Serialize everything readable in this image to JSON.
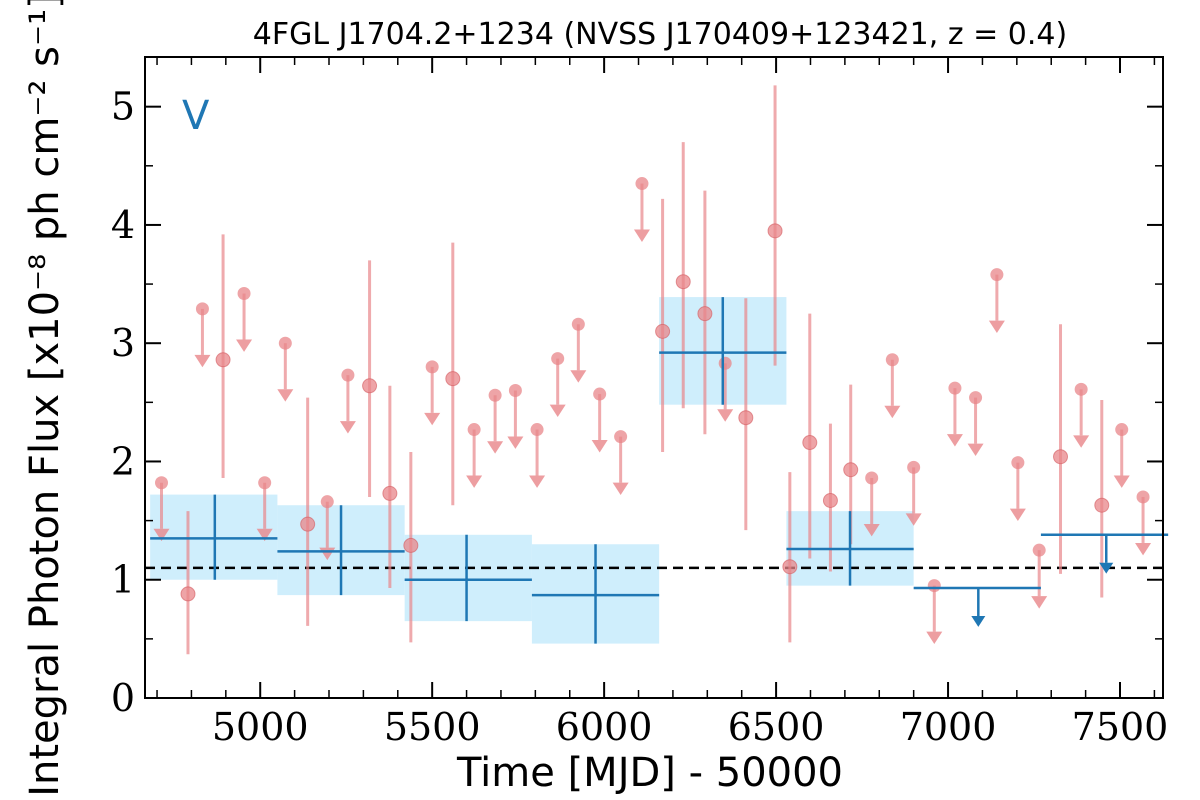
{
  "chart_data": {
    "type": "scatter",
    "title": "4FGL J1704.2+1234 (NVSS J170409+123421, z = 0.4)",
    "xlabel": "Time [MJD] - 50000",
    "ylabel": "Integral Photon Flux [x10⁻⁸ ph cm⁻² s⁻¹]",
    "xlim": [
      4665,
      7625
    ],
    "ylim": [
      0,
      5.42
    ],
    "xticks": [
      5000,
      5500,
      6000,
      6500,
      7000,
      7500
    ],
    "yticks": [
      0,
      1,
      2,
      3,
      4,
      5
    ],
    "annotation": "V",
    "mean_flux_level": 1.1,
    "colors": {
      "monthly": "#e8868a",
      "binned": "#1f77b4",
      "band": "#cfeefc",
      "mean_line": "#000000"
    },
    "monthly_detections": [
      {
        "x": 4790,
        "y": 0.88,
        "lo": 0.37,
        "hi": 1.58
      },
      {
        "x": 4892,
        "y": 2.86,
        "lo": 1.86,
        "hi": 3.92
      },
      {
        "x": 5138,
        "y": 1.47,
        "lo": 0.61,
        "hi": 2.54
      },
      {
        "x": 5318,
        "y": 2.64,
        "lo": 1.7,
        "hi": 3.7
      },
      {
        "x": 5377,
        "y": 1.73,
        "lo": 0.93,
        "hi": 2.64
      },
      {
        "x": 5438,
        "y": 1.29,
        "lo": 0.47,
        "hi": 2.08
      },
      {
        "x": 5560,
        "y": 2.7,
        "lo": 1.63,
        "hi": 3.85
      },
      {
        "x": 6170,
        "y": 3.1,
        "lo": 2.08,
        "hi": 4.22
      },
      {
        "x": 6230,
        "y": 3.52,
        "lo": 2.45,
        "hi": 4.7
      },
      {
        "x": 6293,
        "y": 3.25,
        "lo": 2.23,
        "hi": 4.29
      },
      {
        "x": 6412,
        "y": 2.37,
        "lo": 1.42,
        "hi": 3.38
      },
      {
        "x": 6497,
        "y": 3.95,
        "lo": 2.81,
        "hi": 5.18
      },
      {
        "x": 6540,
        "y": 1.11,
        "lo": 0.47,
        "hi": 1.91
      },
      {
        "x": 6598,
        "y": 2.16,
        "lo": 1.18,
        "hi": 3.25
      },
      {
        "x": 6658,
        "y": 1.67,
        "lo": 1.07,
        "hi": 2.32
      },
      {
        "x": 6717,
        "y": 1.93,
        "lo": 1.3,
        "hi": 2.65
      },
      {
        "x": 7327,
        "y": 2.04,
        "lo": 1.05,
        "hi": 3.16
      },
      {
        "x": 7447,
        "y": 1.63,
        "lo": 0.85,
        "hi": 2.52
      }
    ],
    "monthly_upper_limits": [
      {
        "x": 4713,
        "y": 1.82
      },
      {
        "x": 4832,
        "y": 3.29
      },
      {
        "x": 4953,
        "y": 3.42
      },
      {
        "x": 5013,
        "y": 1.82
      },
      {
        "x": 5073,
        "y": 3.0
      },
      {
        "x": 5195,
        "y": 1.66
      },
      {
        "x": 5255,
        "y": 2.73
      },
      {
        "x": 5500,
        "y": 2.8
      },
      {
        "x": 5622,
        "y": 2.27
      },
      {
        "x": 5683,
        "y": 2.56
      },
      {
        "x": 5742,
        "y": 2.6
      },
      {
        "x": 5805,
        "y": 2.27
      },
      {
        "x": 5865,
        "y": 2.87
      },
      {
        "x": 5925,
        "y": 3.16
      },
      {
        "x": 5987,
        "y": 2.57
      },
      {
        "x": 6048,
        "y": 2.21
      },
      {
        "x": 6110,
        "y": 4.35
      },
      {
        "x": 6352,
        "y": 2.83
      },
      {
        "x": 6778,
        "y": 1.86
      },
      {
        "x": 6838,
        "y": 2.86
      },
      {
        "x": 6900,
        "y": 1.95
      },
      {
        "x": 6960,
        "y": 0.95
      },
      {
        "x": 7020,
        "y": 2.62
      },
      {
        "x": 7080,
        "y": 2.54
      },
      {
        "x": 7142,
        "y": 3.58
      },
      {
        "x": 7203,
        "y": 1.99
      },
      {
        "x": 7265,
        "y": 1.25
      },
      {
        "x": 7387,
        "y": 2.61
      },
      {
        "x": 7505,
        "y": 2.27
      },
      {
        "x": 7567,
        "y": 1.7
      }
    ],
    "binned_detections": [
      {
        "x0": 4680,
        "x1": 5050,
        "x": 4868,
        "y": 1.35,
        "lo": 1.0,
        "hi": 1.72,
        "band_lo": 1.0,
        "band_hi": 1.72
      },
      {
        "x0": 5050,
        "x1": 5420,
        "x": 5235,
        "y": 1.24,
        "lo": 0.87,
        "hi": 1.63,
        "band_lo": 0.87,
        "band_hi": 1.63
      },
      {
        "x0": 5420,
        "x1": 5790,
        "x": 5600,
        "y": 1.0,
        "lo": 0.65,
        "hi": 1.38,
        "band_lo": 0.65,
        "band_hi": 1.38
      },
      {
        "x0": 5790,
        "x1": 6160,
        "x": 5975,
        "y": 0.87,
        "lo": 0.46,
        "hi": 1.3,
        "band_lo": 0.46,
        "band_hi": 1.3
      },
      {
        "x0": 6160,
        "x1": 6530,
        "x": 6345,
        "y": 2.92,
        "lo": 2.48,
        "hi": 3.39,
        "band_lo": 2.48,
        "band_hi": 3.39
      },
      {
        "x0": 6530,
        "x1": 6900,
        "x": 6715,
        "y": 1.26,
        "lo": 0.95,
        "hi": 1.58,
        "band_lo": 0.95,
        "band_hi": 1.58
      }
    ],
    "binned_upper_limits": [
      {
        "x0": 6900,
        "x1": 7270,
        "x": 7088,
        "y": 0.93
      },
      {
        "x0": 7270,
        "x1": 7640,
        "x": 7460,
        "y": 1.38
      }
    ]
  }
}
